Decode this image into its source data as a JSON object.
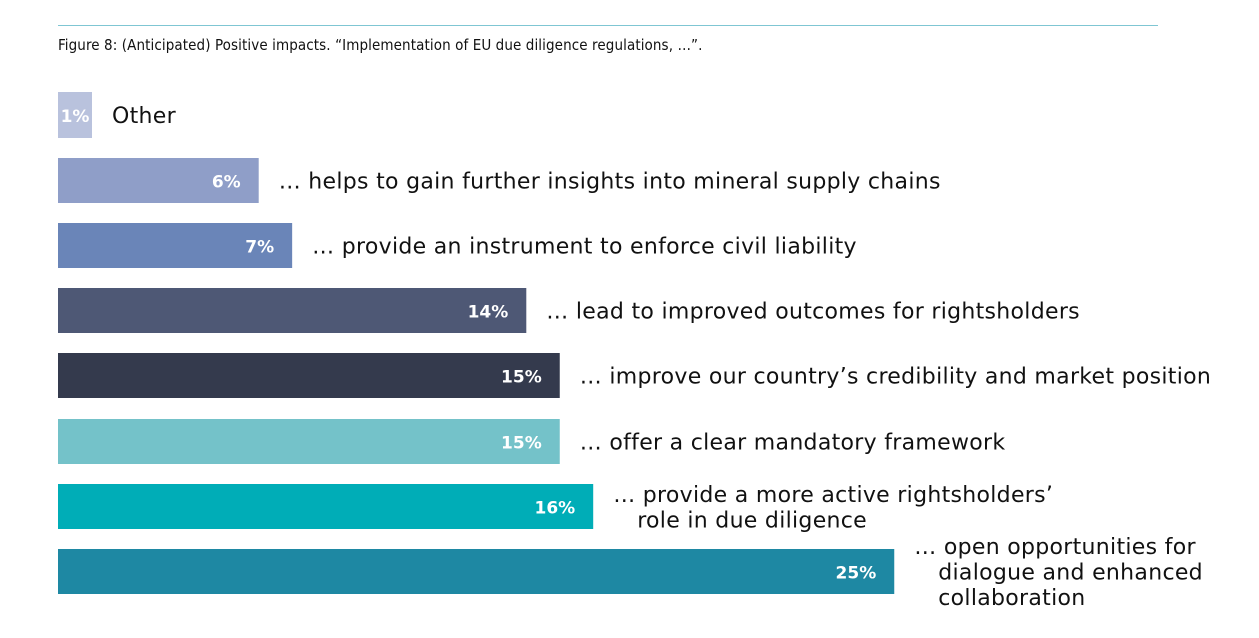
{
  "caption": "Figure 8: (Anticipated) Positive impacts. “Implementation of EU due diligence regulations, …”.",
  "chart_data": {
    "type": "bar",
    "orientation": "horizontal",
    "unit": "%",
    "grid": false,
    "bars": [
      {
        "label": [
          "Other"
        ],
        "value": 1,
        "value_label": "1%",
        "color": "#b9c2dd"
      },
      {
        "label": [
          "… helps to gain further insights into mineral supply chains"
        ],
        "value": 6,
        "value_label": "6%",
        "color": "#8f9ec8"
      },
      {
        "label": [
          "… provide an instrument to enforce civil liability"
        ],
        "value": 7,
        "value_label": "7%",
        "color": "#6a85b8"
      },
      {
        "label": [
          "… lead to improved outcomes for rightsholders"
        ],
        "value": 14,
        "value_label": "14%",
        "color": "#4e5875"
      },
      {
        "label": [
          "… improve our country’s credibility and market position"
        ],
        "value": 15,
        "value_label": "15%",
        "color": "#343a4d"
      },
      {
        "label": [
          "… offer a clear mandatory framework"
        ],
        "value": 15,
        "value_label": "15%",
        "color": "#74c2c9"
      },
      {
        "label": [
          "… provide a more active rightsholders’",
          "role in due diligence"
        ],
        "value": 16,
        "value_label": "16%",
        "color": "#00adb7"
      },
      {
        "label": [
          "… open opportunities for",
          "dialogue and enhanced",
          "collaboration"
        ],
        "value": 25,
        "value_label": "25%",
        "color": "#1e88a3"
      }
    ]
  }
}
